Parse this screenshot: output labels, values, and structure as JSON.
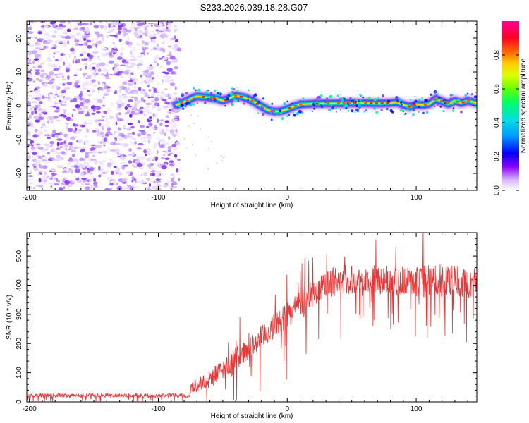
{
  "figure_title": "S233.2026.039.18.28.G07",
  "chart_data": [
    {
      "type": "heatmap",
      "panel": "top",
      "xlabel": "Height of straight line (km)",
      "ylabel": "Frequency (Hz)",
      "xlim": [
        -202,
        147
      ],
      "ylim": [
        -25,
        25
      ],
      "xticks": [
        -200,
        -100,
        0,
        100
      ],
      "xtick_labels": [
        "-200",
        "-100",
        "0",
        "100"
      ],
      "yticks": [
        -20,
        -10,
        0,
        10,
        20
      ],
      "ytick_labels": [
        "-20",
        "-10",
        "0",
        "10",
        "20"
      ],
      "noise_region_x": [
        -202,
        -84
      ],
      "ridge": {
        "x": [
          -86,
          -82,
          -78,
          -74,
          -70,
          -65,
          -60,
          -55,
          -50,
          -45,
          -40,
          -35,
          -30,
          -25,
          -20,
          -15,
          -10,
          -5,
          0,
          5,
          10,
          20,
          30,
          40,
          50,
          60,
          70,
          80,
          85,
          90,
          95,
          100,
          105,
          110,
          115,
          120,
          125,
          130,
          135,
          140,
          147
        ],
        "y": [
          0.2,
          0.8,
          1.5,
          2.2,
          2.8,
          2.6,
          2.4,
          2.1,
          1.5,
          2.2,
          3.0,
          2.6,
          2.0,
          1.0,
          -0.2,
          -1.3,
          -1.7,
          -1.6,
          -1.0,
          -0.2,
          0.4,
          0.6,
          0.7,
          0.7,
          0.8,
          0.8,
          0.7,
          0.8,
          1.0,
          0.3,
          -0.3,
          0.4,
          0.2,
          0.5,
          2.0,
          1.3,
          0.5,
          1.5,
          0.8,
          1.5,
          0.8
        ]
      },
      "colorbar": {
        "label": "Normalized spectral amplitude",
        "range": [
          0,
          1
        ],
        "ticks": [
          0.0,
          0.2,
          0.4,
          0.6,
          0.8
        ],
        "tick_labels": [
          "0.0",
          "0.2",
          "0.4",
          "0.6",
          "0.8"
        ],
        "colors": [
          "#ffffff",
          "#8800ff",
          "#0000ff",
          "#00ccff",
          "#00ff66",
          "#aaff00",
          "#ffdd00",
          "#ff6600",
          "#ff0033",
          "#ff00aa"
        ]
      }
    },
    {
      "type": "line",
      "panel": "bottom",
      "xlabel": "Height of straight line (km)",
      "ylabel": "SNR (10 * v/v)",
      "xlim": [
        -202,
        147
      ],
      "ylim": [
        0,
        580
      ],
      "xticks": [
        -200,
        -100,
        0,
        100
      ],
      "xtick_labels": [
        "-200",
        "-100",
        "0",
        "100"
      ],
      "yticks": [
        0,
        100,
        200,
        300,
        400,
        500
      ],
      "ytick_labels": [
        "0",
        "100",
        "200",
        "300",
        "400",
        "500"
      ],
      "series": [
        {
          "name": "SNR",
          "color": "#ee3333",
          "x": [
            -202,
            -190,
            -180,
            -170,
            -160,
            -150,
            -140,
            -130,
            -120,
            -110,
            -100,
            -90,
            -80,
            -76,
            -75,
            -70,
            -60,
            -50,
            -40,
            -30,
            -20,
            -10,
            0,
            10,
            20,
            30,
            40,
            50,
            60,
            70,
            80,
            90,
            100,
            110,
            120,
            130,
            140,
            147
          ],
          "y": [
            22,
            22,
            23,
            21,
            22,
            23,
            22,
            22,
            23,
            22,
            22,
            23,
            22,
            22,
            45,
            55,
            80,
            110,
            150,
            180,
            220,
            260,
            300,
            340,
            370,
            400,
            420,
            420,
            410,
            420,
            415,
            415,
            410,
            415,
            410,
            420,
            400,
            420
          ],
          "spread": [
            8,
            8,
            8,
            8,
            8,
            8,
            8,
            8,
            8,
            8,
            8,
            8,
            8,
            8,
            25,
            30,
            35,
            40,
            45,
            45,
            50,
            50,
            55,
            55,
            55,
            60,
            60,
            60,
            60,
            60,
            60,
            60,
            60,
            70,
            60,
            60,
            60,
            55
          ]
        }
      ]
    }
  ]
}
